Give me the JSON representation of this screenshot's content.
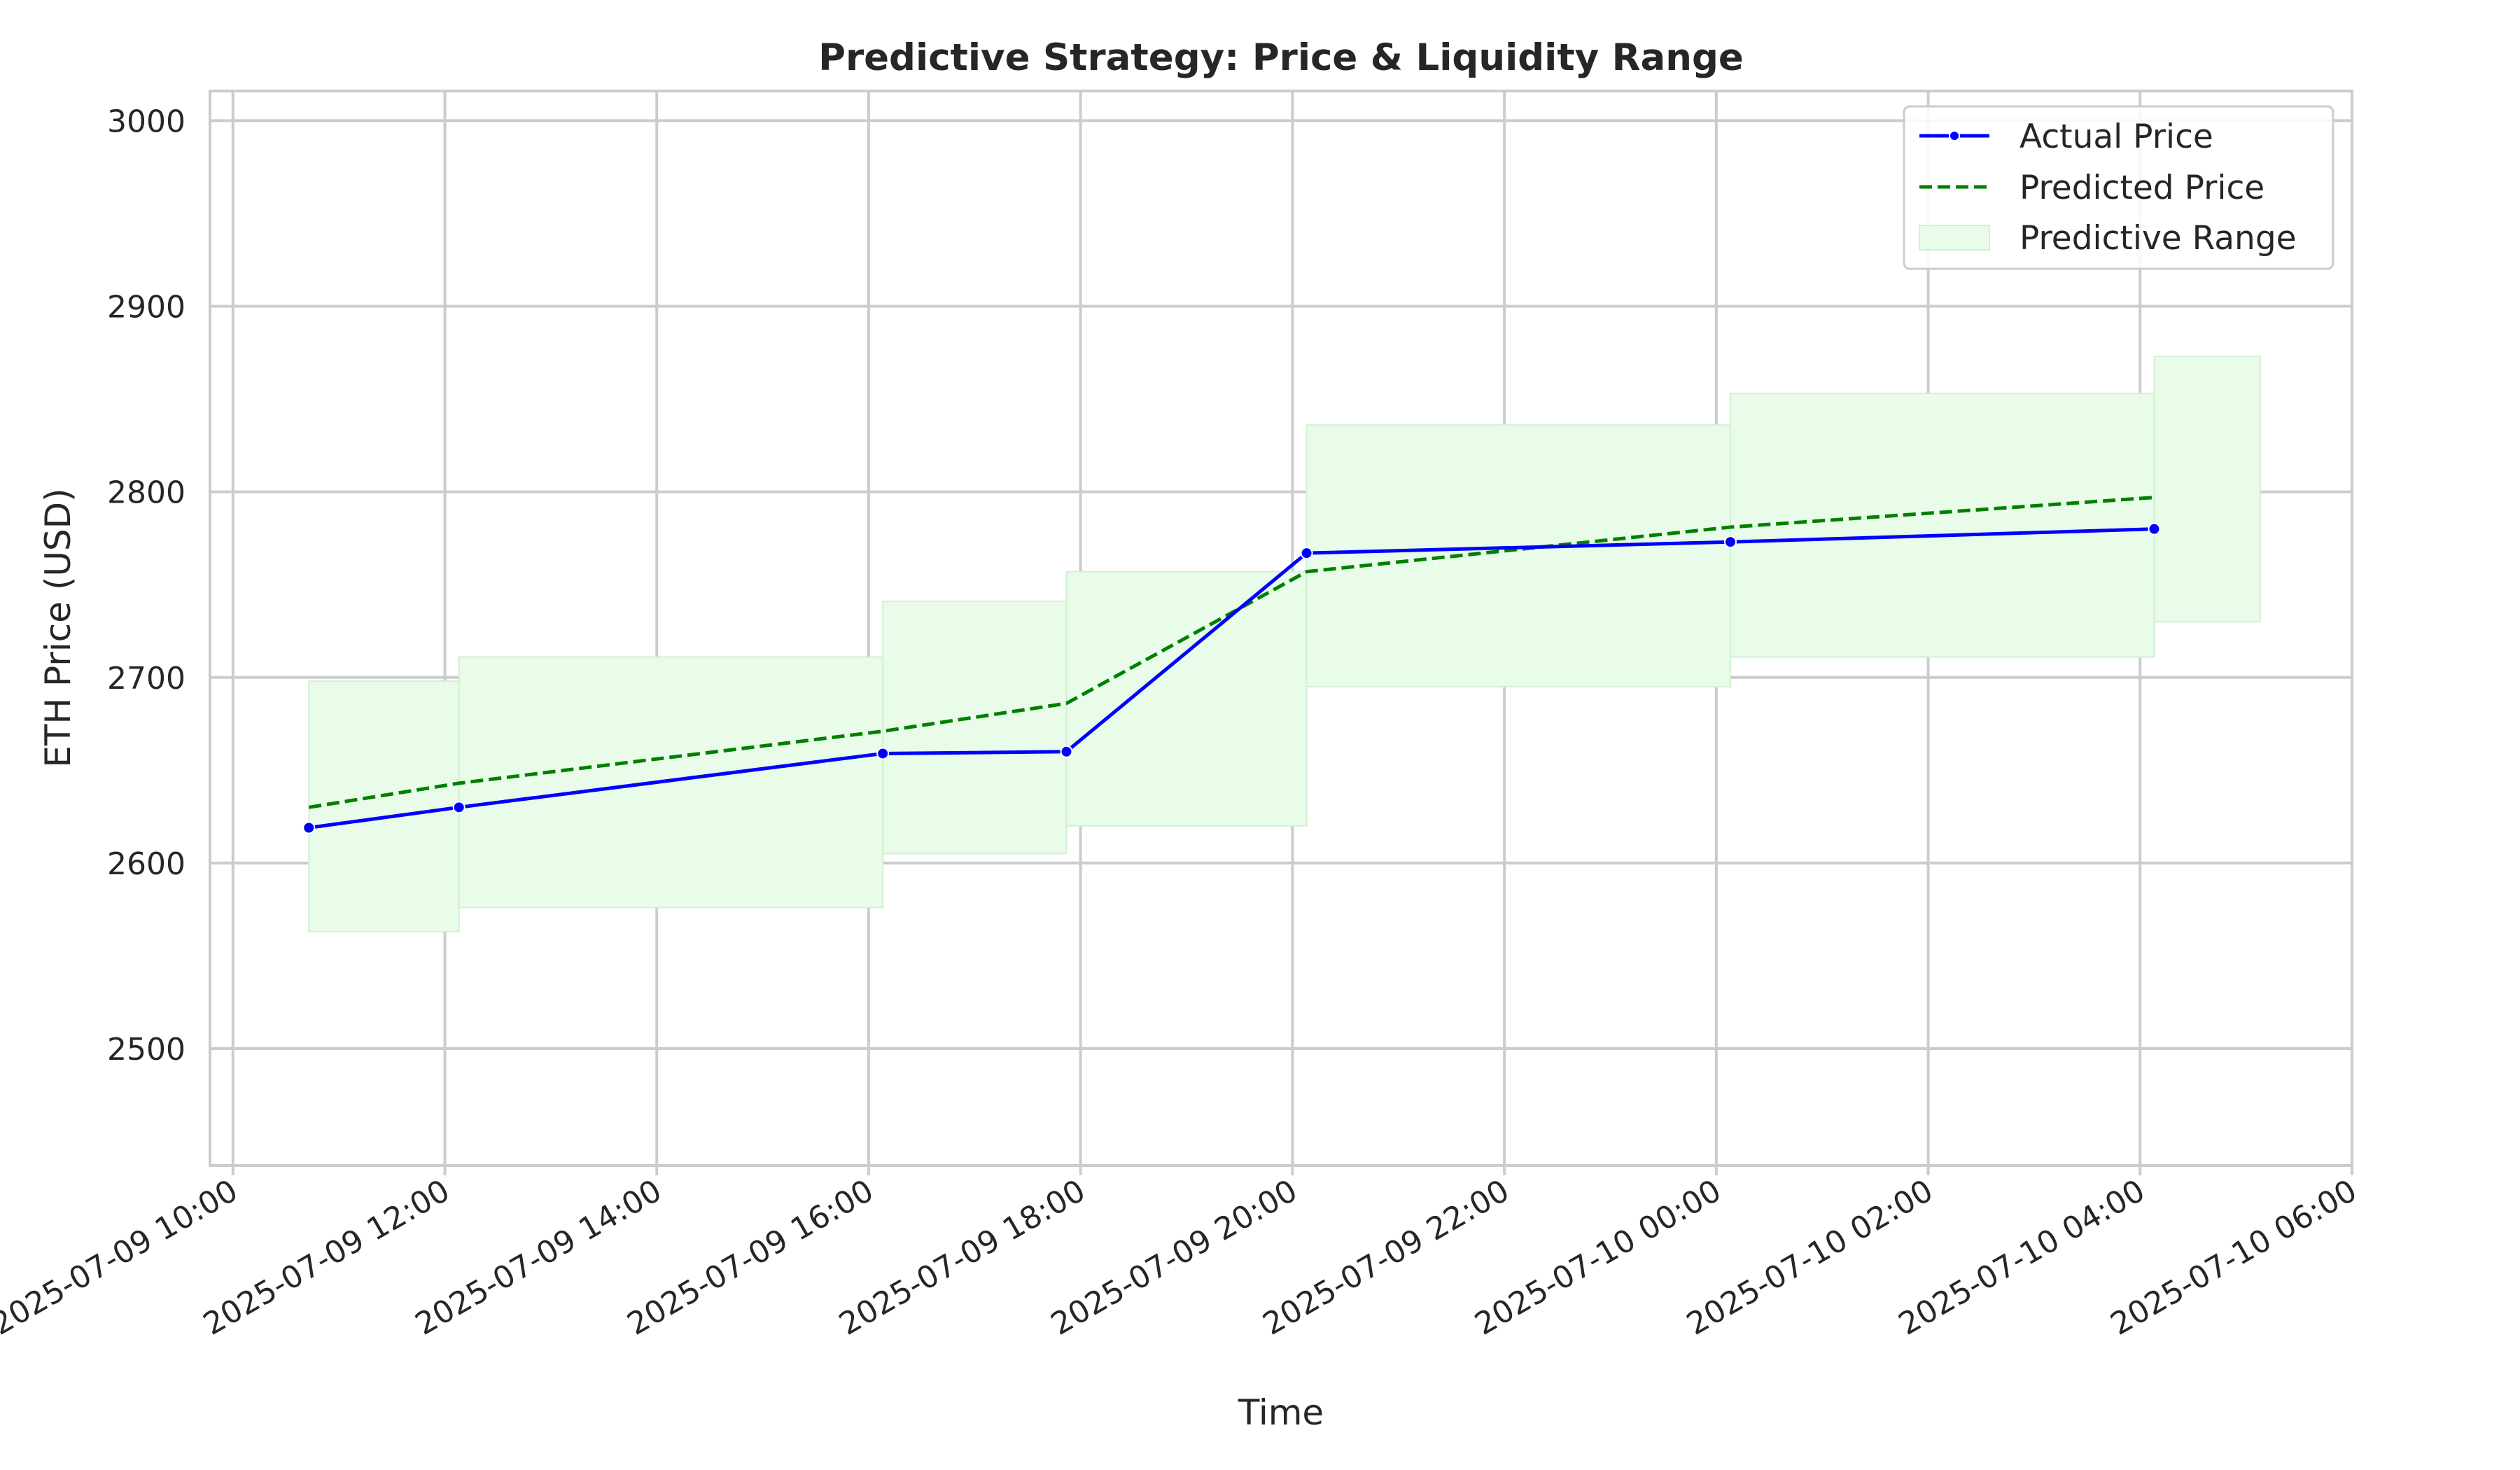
{
  "chart_data": {
    "type": "line",
    "title": "Predictive Strategy: Price & Liquidity Range",
    "xlabel": "Time",
    "ylabel": "ETH Price (USD)",
    "x_axis_type": "datetime",
    "xlim": [
      "2025-07-09 09:47",
      "2025-07-10 06:00"
    ],
    "ylim": [
      2437,
      3016
    ],
    "x_ticks": [
      "2025-07-09 10:00",
      "2025-07-09 12:00",
      "2025-07-09 14:00",
      "2025-07-09 16:00",
      "2025-07-09 18:00",
      "2025-07-09 20:00",
      "2025-07-09 22:00",
      "2025-07-10 00:00",
      "2025-07-10 02:00",
      "2025-07-10 04:00",
      "2025-07-10 06:00"
    ],
    "y_ticks": [
      2500,
      2600,
      2700,
      2800,
      2900,
      3000
    ],
    "grid": true,
    "legend_position": "top-right",
    "x": [
      "2025-07-09 10:43",
      "2025-07-09 12:08",
      "2025-07-09 16:08",
      "2025-07-09 17:52",
      "2025-07-09 20:08",
      "2025-07-10 00:08",
      "2025-07-10 04:08"
    ],
    "series": [
      {
        "name": "Actual Price",
        "style": "solid",
        "marker": "circle",
        "color": "#0000ff",
        "values": [
          2619,
          2630,
          2659,
          2660,
          2767,
          2773,
          2780
        ]
      },
      {
        "name": "Predicted Price",
        "style": "dashed",
        "color": "#008000",
        "values": [
          2630,
          2643,
          2671,
          2686,
          2757,
          2781,
          2797
        ]
      }
    ],
    "range": {
      "name": "Predictive Range",
      "color": "#e9fbe9",
      "segments": [
        {
          "start": "2025-07-09 10:43",
          "end": "2025-07-09 12:08",
          "low": 2563,
          "high": 2698
        },
        {
          "start": "2025-07-09 12:08",
          "end": "2025-07-09 16:08",
          "low": 2576,
          "high": 2711
        },
        {
          "start": "2025-07-09 16:08",
          "end": "2025-07-09 17:52",
          "low": 2605,
          "high": 2741
        },
        {
          "start": "2025-07-09 17:52",
          "end": "2025-07-09 20:08",
          "low": 2620,
          "high": 2757
        },
        {
          "start": "2025-07-09 20:08",
          "end": "2025-07-10 00:08",
          "low": 2695,
          "high": 2836
        },
        {
          "start": "2025-07-10 00:08",
          "end": "2025-07-10 04:08",
          "low": 2711,
          "high": 2853
        },
        {
          "start": "2025-07-10 04:08",
          "end": "2025-07-10 05:08",
          "low": 2730,
          "high": 2873
        }
      ]
    }
  }
}
